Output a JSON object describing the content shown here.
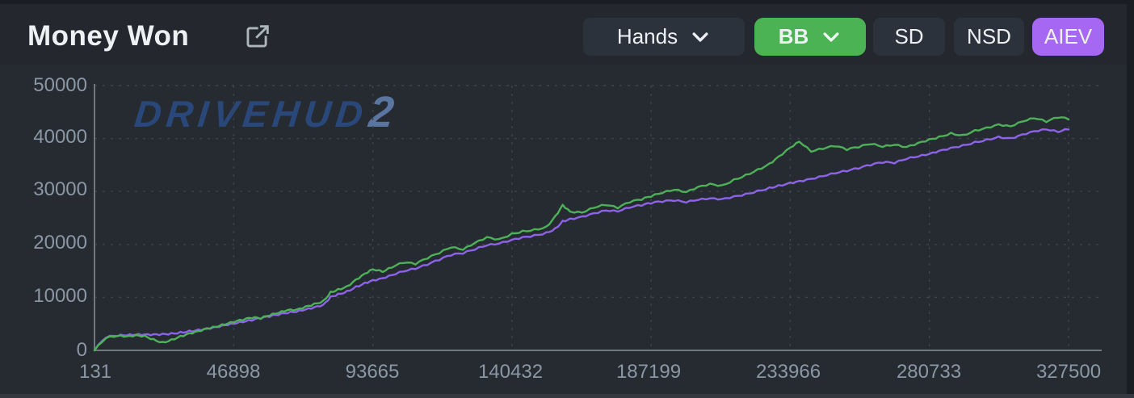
{
  "header": {
    "title": "Money Won",
    "controls": [
      {
        "label": "Hands",
        "type": "dropdown",
        "active": false
      },
      {
        "label": "BB",
        "type": "dropdown",
        "active": true,
        "color": "#4cb354"
      },
      {
        "label": "SD",
        "type": "toggle",
        "active": false
      },
      {
        "label": "NSD",
        "type": "toggle",
        "active": false
      },
      {
        "label": "AIEV",
        "type": "toggle",
        "active": true,
        "color": "#a667f2"
      }
    ],
    "icons": {
      "expand": "open-in-new-icon",
      "dropdown": "chevron-down-icon"
    }
  },
  "watermark": {
    "text": "DRIVEHUD",
    "suffix": "2"
  },
  "colors": {
    "background": "#24282e",
    "button_bg": "#2c323b",
    "bb_green": "#4cb354",
    "aiev_purple": "#a667f2",
    "line_green": "#4db158",
    "line_purple": "#8d63e9",
    "axis_label": "#8b97a4",
    "gridline": "#3d444c",
    "axis_line": "#70787f",
    "title_text": "#eef1f4"
  },
  "chart_data": {
    "type": "line",
    "title": "Money Won",
    "xlabel": "Hands",
    "ylabel": "",
    "grid": true,
    "legend_position": "none",
    "xlim": [
      131,
      327500
    ],
    "ylim": [
      0,
      50000
    ],
    "x_ticks": [
      131,
      46898,
      93665,
      140432,
      187199,
      233966,
      280733,
      327500
    ],
    "x_tick_labels": [
      "131",
      "46898",
      "93665",
      "140432",
      "187199",
      "233966",
      "280733",
      "327500"
    ],
    "y_ticks": [
      0,
      10000,
      20000,
      30000,
      40000,
      50000
    ],
    "y_tick_labels": [
      "0",
      "10000",
      "20000",
      "30000",
      "40000",
      "50000"
    ],
    "x": [
      131,
      4000,
      8000,
      11000,
      14000,
      17000,
      20000,
      23000,
      26000,
      29000,
      32000,
      35000,
      38000,
      41000,
      44000,
      46898,
      50000,
      53000,
      56000,
      59000,
      62000,
      65000,
      68000,
      71000,
      74000,
      77000,
      79500,
      82000,
      85000,
      88000,
      91000,
      93665,
      97000,
      100000,
      104000,
      108000,
      112000,
      116000,
      120000,
      124000,
      128000,
      132000,
      136000,
      140432,
      144000,
      148000,
      152000,
      155000,
      157500,
      160000,
      164000,
      168000,
      172000,
      176000,
      180000,
      184000,
      187199,
      191000,
      195000,
      199000,
      203000,
      207000,
      211000,
      215000,
      219000,
      223000,
      227000,
      230000,
      233966,
      237000,
      241000,
      245000,
      249000,
      253000,
      257000,
      261000,
      265000,
      269000,
      273000,
      277000,
      280733,
      284000,
      288000,
      292000,
      296000,
      300000,
      304000,
      308000,
      312000,
      316000,
      320000,
      324000,
      327500
    ],
    "series": [
      {
        "name": "BB",
        "color": "#4db158",
        "values": [
          0,
          2300,
          2750,
          2650,
          2900,
          2800,
          2150,
          1600,
          2100,
          2750,
          3250,
          3650,
          4100,
          4400,
          4850,
          5250,
          5650,
          6050,
          5950,
          6550,
          7050,
          7600,
          7700,
          8300,
          8850,
          9400,
          11100,
          11600,
          12150,
          13400,
          14500,
          15300,
          14800,
          15600,
          16500,
          16200,
          17300,
          18300,
          19400,
          19000,
          20300,
          21400,
          21000,
          22100,
          22600,
          22900,
          23400,
          25400,
          27500,
          26200,
          26000,
          26900,
          27400,
          26800,
          27900,
          28400,
          29000,
          29700,
          30300,
          29900,
          30900,
          31500,
          31200,
          32300,
          33200,
          34200,
          35300,
          36600,
          38300,
          39400,
          37500,
          38000,
          38500,
          37800,
          38300,
          38900,
          38400,
          38800,
          38400,
          39200,
          39900,
          40400,
          41100,
          40700,
          41600,
          42100,
          42700,
          42300,
          43200,
          43800,
          43100,
          43900,
          43600
        ]
      },
      {
        "name": "AIEV",
        "color": "#8d63e9",
        "values": [
          0,
          2400,
          2700,
          2800,
          2950,
          3000,
          3050,
          3150,
          3300,
          3500,
          3750,
          3950,
          4200,
          4450,
          4750,
          5000,
          5300,
          5600,
          5950,
          6300,
          6650,
          7000,
          7250,
          7700,
          8150,
          8650,
          10200,
          10700,
          11250,
          12100,
          12800,
          13300,
          13650,
          14200,
          14900,
          15350,
          16100,
          17000,
          17900,
          18250,
          19000,
          19800,
          20150,
          20900,
          21400,
          21800,
          22300,
          23100,
          24500,
          24900,
          25300,
          25900,
          26400,
          26200,
          26900,
          27300,
          27700,
          28000,
          28200,
          27900,
          28400,
          28700,
          28600,
          29100,
          29600,
          30200,
          30800,
          31200,
          31700,
          32000,
          32400,
          32900,
          33400,
          33800,
          34300,
          34900,
          35400,
          35300,
          36100,
          36600,
          37100,
          37700,
          38300,
          38800,
          39400,
          39900,
          40400,
          40100,
          40800,
          41400,
          41700,
          41200,
          41700
        ]
      }
    ]
  }
}
